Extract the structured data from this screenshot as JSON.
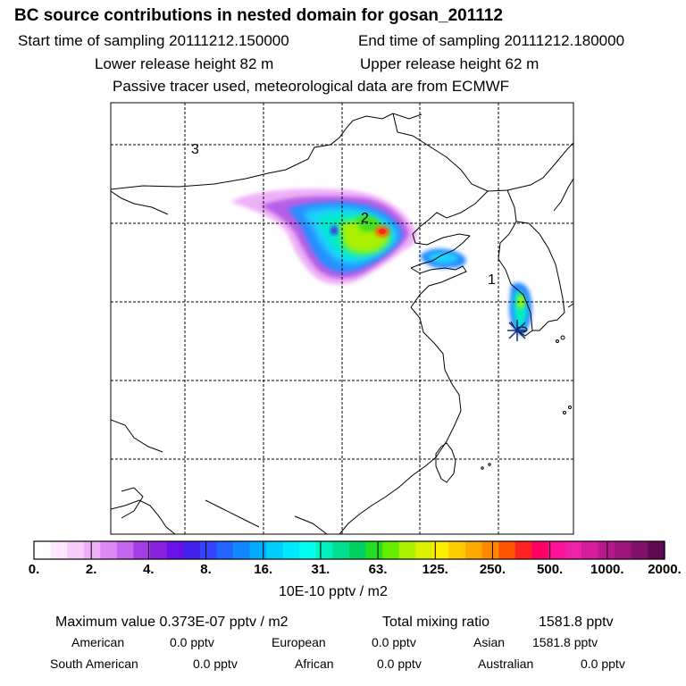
{
  "header": {
    "title": "BC  source contributions in nested domain for gosan_201112",
    "start_label": "Start time of sampling 20111212.150000",
    "end_label": "End time of sampling 20111212.180000",
    "lower_label": "Lower release height   82 m",
    "upper_label": "Upper release height   62 m",
    "tracer_note": "Passive tracer used, meteorological data are from ECMWF"
  },
  "map": {
    "region_labels": [
      "3",
      "2",
      "1"
    ],
    "receptor_marker": "star-marker"
  },
  "colorbar": {
    "tick_labels": [
      "0.",
      "2.",
      "4.",
      "8.",
      "16.",
      "31.",
      "63.",
      "125.",
      "250.",
      "500.",
      "1000.",
      "2000."
    ],
    "units": "10E-10 pptv / m2",
    "colors": [
      "#ffffff",
      "#ffe6ff",
      "#f7ccfb",
      "#eeb0f7",
      "#dd88f4",
      "#c466ee",
      "#a43ce6",
      "#8a20e0",
      "#6a10e8",
      "#4422ee",
      "#3344ff",
      "#2266ff",
      "#1188ff",
      "#00aaff",
      "#00ccff",
      "#00e8ff",
      "#00ffee",
      "#00f0c0",
      "#00e090",
      "#00d060",
      "#22dd22",
      "#66ee00",
      "#aaf000",
      "#ddf000",
      "#ffee00",
      "#ffcc00",
      "#ffaa00",
      "#ff8800",
      "#ff5500",
      "#ff2222",
      "#ff0066",
      "#ff1199",
      "#ee22aa",
      "#d41c9c",
      "#b8188c",
      "#9c147c",
      "#80106a",
      "#600a54"
    ]
  },
  "stats": {
    "max_label": "Maximum value  0.373E-07 pptv / m2",
    "total_label": "Total mixing ratio",
    "total_value": "1581.8 pptv",
    "regions": [
      {
        "name": "American",
        "value": "0.0 pptv"
      },
      {
        "name": "European",
        "value": "0.0 pptv"
      },
      {
        "name": "Asian",
        "value": "1581.8 pptv"
      },
      {
        "name": "South American",
        "value": "0.0 pptv"
      },
      {
        "name": "African",
        "value": "0.0 pptv"
      },
      {
        "name": "Australian",
        "value": "0.0 pptv"
      }
    ]
  }
}
